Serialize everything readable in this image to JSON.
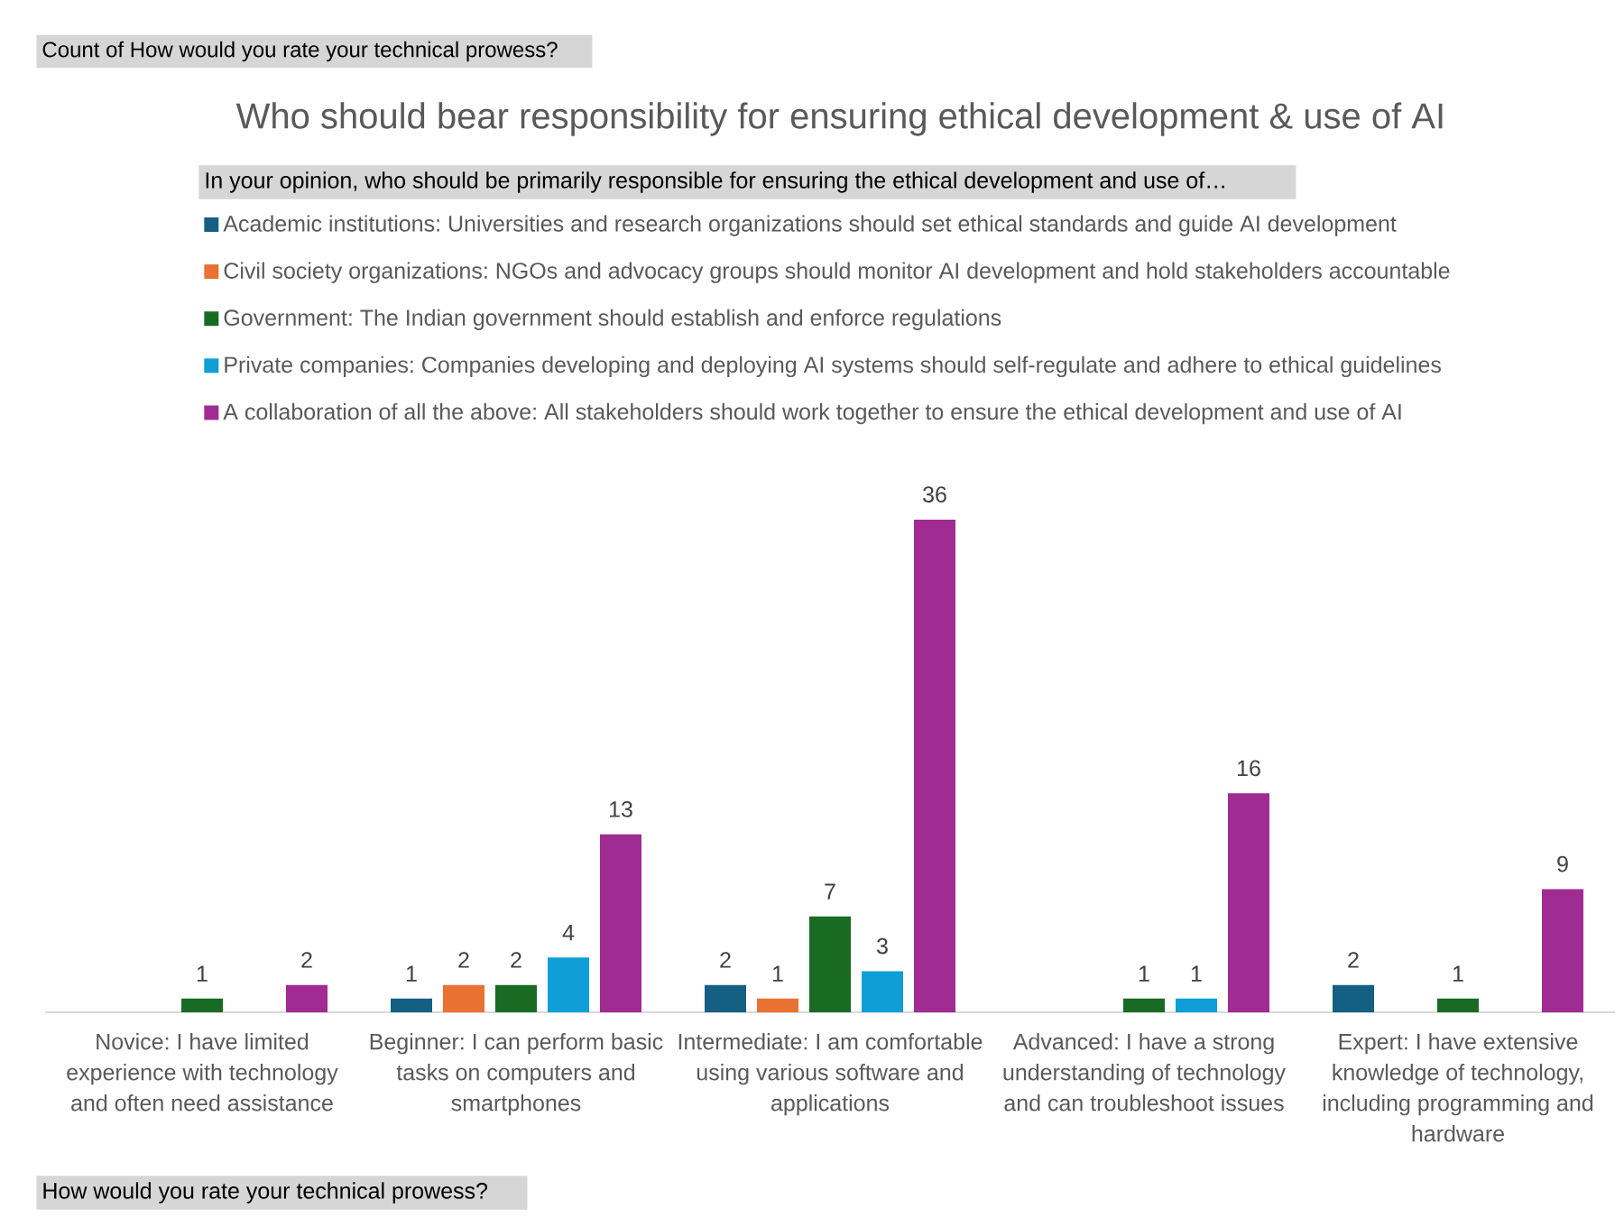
{
  "chart_data": {
    "type": "bar",
    "title": "Who should bear responsibility for ensuring ethical development & use of AI",
    "xlabel": "How would you rate your technical prowess?",
    "legend_title": "In your opinion, who should be primarily responsible for ensuring the ethical development and use of…",
    "annotations": [
      "Count of How would you rate your technical prowess?"
    ],
    "categories": [
      "Novice: I have limited experience with technology and often need assistance",
      "Beginner: I can perform basic tasks on computers and smartphones",
      "Intermediate: I am comfortable using various software and applications",
      "Advanced: I have a strong understanding of technology and can troubleshoot issues",
      "Expert: I have extensive knowledge of technology, including programming and hardware"
    ],
    "series": [
      {
        "name": "Academic institutions: Universities and research organizations should set ethical standards and guide AI development",
        "color": "#156082",
        "values": [
          null,
          1,
          2,
          null,
          2
        ]
      },
      {
        "name": "Civil society organizations: NGOs and advocacy groups should monitor AI development and hold stakeholders accountable",
        "color": "#e97132",
        "values": [
          null,
          2,
          1,
          null,
          null
        ]
      },
      {
        "name": "Government: The Indian government should establish and enforce regulations",
        "color": "#196b24",
        "values": [
          1,
          2,
          7,
          1,
          1
        ]
      },
      {
        "name": "Private companies: Companies developing and deploying AI systems should self-regulate and adhere to ethical guidelines",
        "color": "#0f9ed5",
        "values": [
          null,
          4,
          3,
          1,
          null
        ]
      },
      {
        "name": "A collaboration of all the above: All stakeholders should work together to ensure the ethical development and use of AI",
        "color": "#a02b93",
        "values": [
          2,
          13,
          36,
          16,
          9
        ]
      }
    ],
    "data_labels": true,
    "legend": "top"
  }
}
